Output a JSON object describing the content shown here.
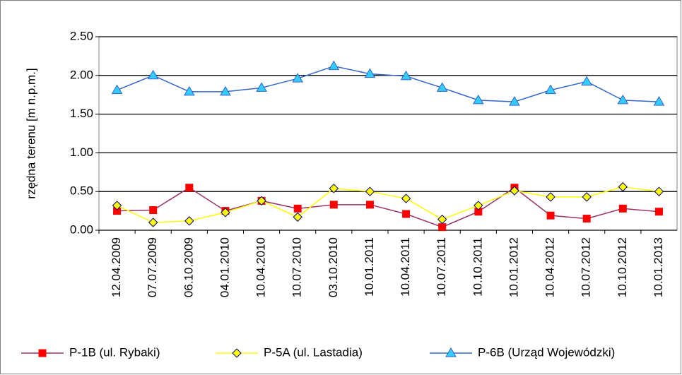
{
  "chart_data": {
    "type": "line",
    "ylabel": "rzędna terenu [m n.p.m.]",
    "categories": [
      "12.04.2009",
      "07.07.2009",
      "06.10.2009",
      "04.01.2010",
      "10.04.2010",
      "10.07.2010",
      "03.10.2010",
      "10.01.2011",
      "10.04.2011",
      "10.07.2011",
      "10.10.2011",
      "10.01.2012",
      "10.04.2012",
      "10.07.2012",
      "10.10.2012",
      "10.01.2013"
    ],
    "series": [
      {
        "name": "P-1B (ul. Rybaki)",
        "color": "#993366",
        "marker": "square",
        "marker_color": "#ff0000",
        "marker_stroke": "#ff0000",
        "values": [
          0.25,
          0.26,
          0.55,
          0.25,
          0.38,
          0.28,
          0.33,
          0.33,
          0.21,
          0.04,
          0.24,
          0.55,
          0.19,
          0.15,
          0.28,
          0.24
        ]
      },
      {
        "name": "P-5A (ul. Lastadia)",
        "color": "#ffff00",
        "marker": "diamond",
        "marker_color": "#ffff00",
        "marker_stroke": "#000080",
        "values": [
          0.32,
          0.1,
          0.12,
          0.23,
          0.38,
          0.17,
          0.54,
          0.5,
          0.41,
          0.14,
          0.32,
          0.51,
          0.43,
          0.43,
          0.56,
          0.5
        ]
      },
      {
        "name": "P-6B (Urząd Wojewódzki)",
        "color": "#3366cc",
        "marker": "triangle",
        "marker_color": "#33ccff",
        "marker_stroke": "#3366cc",
        "values": [
          1.81,
          2.0,
          1.79,
          1.79,
          1.84,
          1.96,
          2.12,
          2.02,
          1.99,
          1.84,
          1.68,
          1.66,
          1.81,
          1.92,
          1.68,
          1.66
        ]
      }
    ],
    "ylim": [
      0,
      2.5
    ],
    "yticks": [
      {
        "value": 0,
        "label": "0.00"
      },
      {
        "value": 0.5,
        "label": "0.50"
      },
      {
        "value": 1,
        "label": "1.00"
      },
      {
        "value": 1.5,
        "label": "1.50"
      },
      {
        "value": 2,
        "label": "2.00"
      },
      {
        "value": 2.5,
        "label": "2.50"
      }
    ],
    "grid": true,
    "legend": "bottom"
  }
}
